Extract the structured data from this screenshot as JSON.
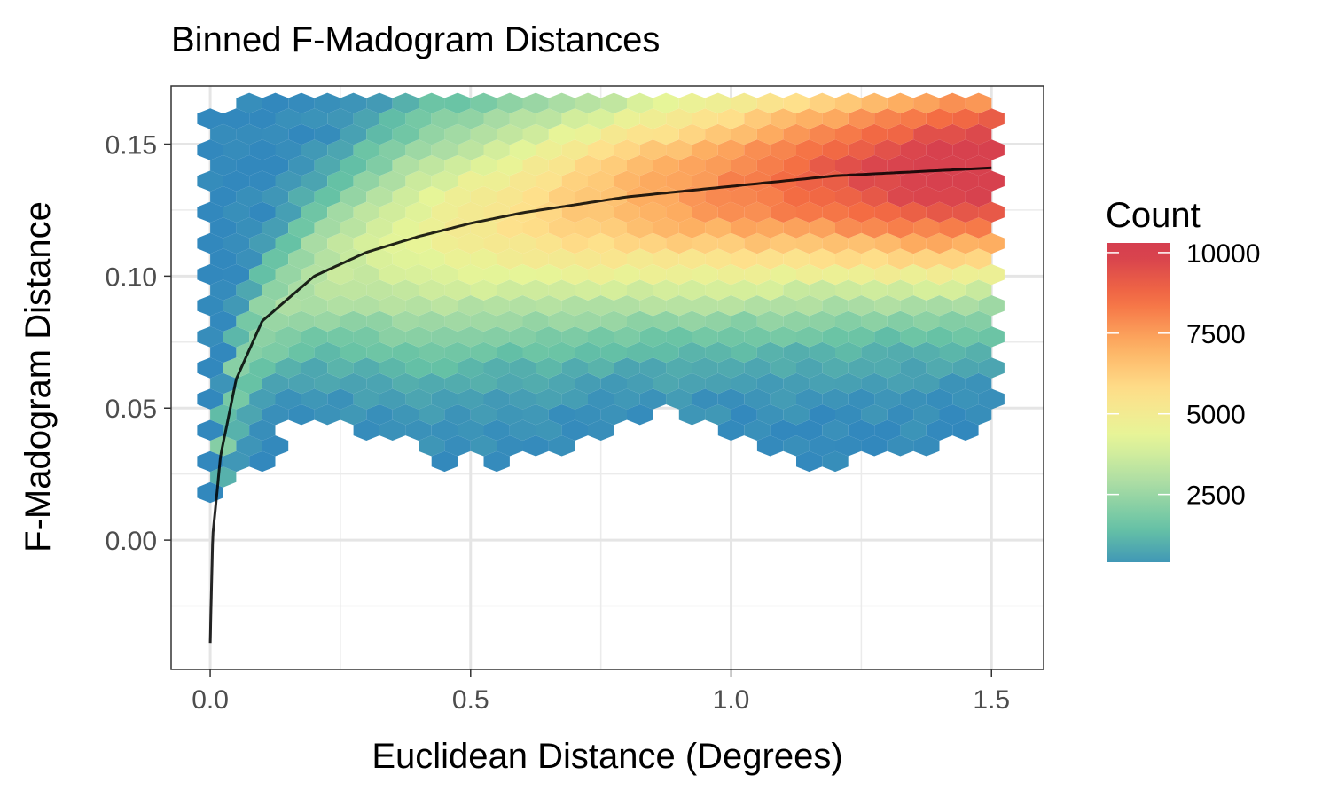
{
  "chart_data": {
    "type": "heatmap",
    "subtype": "hexbin",
    "title": "Binned F-Madogram Distances",
    "xlabel": "Euclidean Distance (Degrees)",
    "ylabel": "F-Madogram Distance",
    "xlim": [
      -0.075,
      1.6
    ],
    "ylim": [
      -0.049,
      0.172
    ],
    "x_ticks": [
      0.0,
      0.5,
      1.0,
      1.5
    ],
    "x_tick_labels": [
      "0.0",
      "0.5",
      "1.0",
      "1.5"
    ],
    "y_ticks": [
      0.0,
      0.05,
      0.1,
      0.15
    ],
    "y_tick_labels": [
      "0.00",
      "0.05",
      "0.10",
      "0.15"
    ],
    "grid": true,
    "legend": {
      "title": "Count",
      "position": "right",
      "min": 0,
      "max": 10000,
      "ticks": [
        2500,
        5000,
        7500,
        10000
      ],
      "tick_labels": [
        "2500",
        "5000",
        "7500",
        "10000"
      ],
      "palette": [
        "#3288bd",
        "#66c2a5",
        "#abdda4",
        "#e6f598",
        "#fee08b",
        "#fdae61",
        "#f46d43",
        "#d53e4f"
      ]
    },
    "hex_grid": {
      "x_range": [
        0,
        1.5
      ],
      "y_range": [
        0.018,
        0.168
      ],
      "x_bins": 30,
      "description": "Dense core follows fitted curve; highest counts near x=1.2-1.5, y=0.12-0.165"
    },
    "fit_curve": {
      "color": "#000000",
      "x": [
        0.0,
        0.005,
        0.02,
        0.05,
        0.1,
        0.2,
        0.3,
        0.4,
        0.5,
        0.6,
        0.7,
        0.8,
        0.9,
        1.0,
        1.1,
        1.2,
        1.3,
        1.4,
        1.5
      ],
      "y": [
        -0.039,
        0.002,
        0.032,
        0.061,
        0.083,
        0.1,
        0.109,
        0.115,
        0.12,
        0.124,
        0.127,
        0.13,
        0.132,
        0.134,
        0.136,
        0.138,
        0.139,
        0.14,
        0.141
      ]
    }
  }
}
